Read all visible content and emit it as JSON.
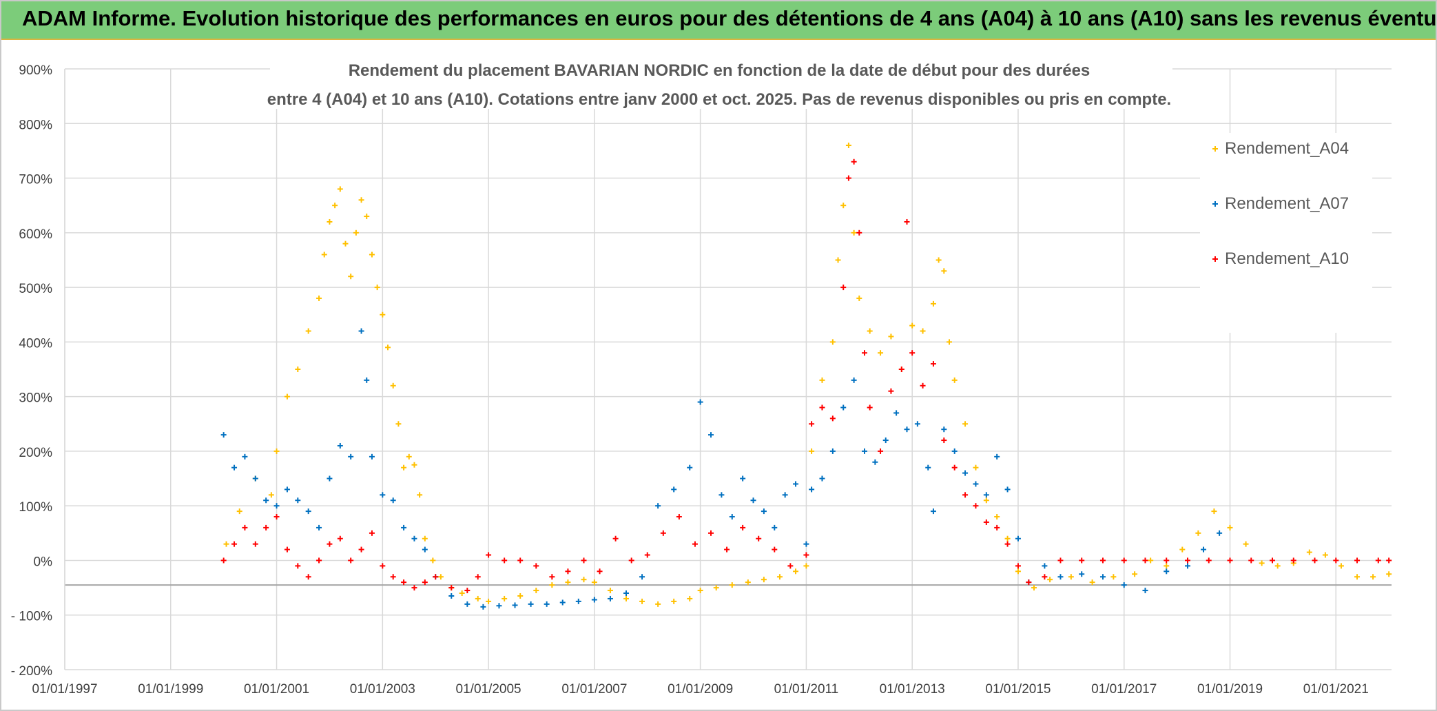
{
  "banner": {
    "title": "ADAM Informe. Evolution historique des performances en euros pour des détentions de 4 ans (A04) à 10 ans (A10) sans les revenus éventuels",
    "color": "#7ccc7a"
  },
  "chart_data": {
    "type": "scatter",
    "title_lines": [
      "Rendement du placement BAVARIAN NORDIC en fonction de la date de début pour des durées",
      "entre 4 (A04) et 10 ans (A10). Cotations entre janv 2000 et oct. 2025. Pas de revenus disponibles ou pris en compte."
    ],
    "x_ticks": [
      "01/01/1997",
      "01/01/1999",
      "01/01/2001",
      "01/01/2003",
      "01/01/2005",
      "01/01/2007",
      "01/01/2009",
      "01/01/2011",
      "01/01/2013",
      "01/01/2015",
      "01/01/2017",
      "01/01/2019",
      "01/01/2021"
    ],
    "x_tick_years": [
      1997,
      1999,
      2001,
      2003,
      2005,
      2007,
      2009,
      2011,
      2013,
      2015,
      2017,
      2019,
      2021
    ],
    "xlim": [
      1997,
      2022.05
    ],
    "ylim": [
      -200,
      900
    ],
    "y_ticks": [
      -200,
      -100,
      0,
      100,
      200,
      300,
      400,
      500,
      600,
      700,
      800,
      900
    ],
    "y_tick_labels": [
      "- 200%",
      "- 100%",
      "0%",
      "100%",
      "200%",
      "300%",
      "400%",
      "500%",
      "600%",
      "700%",
      "800%",
      "900%"
    ],
    "legend_position": "right",
    "series": [
      {
        "name": "Rendement_A04",
        "color": "#ffc000",
        "points": [
          [
            2000.05,
            30
          ],
          [
            2000.3,
            90
          ],
          [
            2000.6,
            150
          ],
          [
            2000.9,
            120
          ],
          [
            2001.0,
            200
          ],
          [
            2001.2,
            300
          ],
          [
            2001.4,
            350
          ],
          [
            2001.6,
            420
          ],
          [
            2001.8,
            480
          ],
          [
            2001.9,
            560
          ],
          [
            2002.0,
            620
          ],
          [
            2002.1,
            650
          ],
          [
            2002.2,
            680
          ],
          [
            2002.3,
            580
          ],
          [
            2002.4,
            520
          ],
          [
            2002.5,
            600
          ],
          [
            2002.6,
            660
          ],
          [
            2002.7,
            630
          ],
          [
            2002.8,
            560
          ],
          [
            2002.9,
            500
          ],
          [
            2003.0,
            450
          ],
          [
            2003.1,
            390
          ],
          [
            2003.2,
            320
          ],
          [
            2003.3,
            250
          ],
          [
            2003.4,
            170
          ],
          [
            2003.5,
            190
          ],
          [
            2003.6,
            175
          ],
          [
            2003.7,
            120
          ],
          [
            2003.8,
            40
          ],
          [
            2003.95,
            0
          ],
          [
            2004.1,
            -30
          ],
          [
            2004.3,
            -50
          ],
          [
            2004.5,
            -60
          ],
          [
            2004.8,
            -70
          ],
          [
            2005.0,
            -75
          ],
          [
            2005.3,
            -70
          ],
          [
            2005.6,
            -65
          ],
          [
            2005.9,
            -55
          ],
          [
            2006.2,
            -45
          ],
          [
            2006.5,
            -40
          ],
          [
            2006.8,
            -35
          ],
          [
            2007.0,
            -40
          ],
          [
            2007.3,
            -55
          ],
          [
            2007.6,
            -70
          ],
          [
            2007.9,
            -75
          ],
          [
            2008.2,
            -80
          ],
          [
            2008.5,
            -75
          ],
          [
            2008.8,
            -70
          ],
          [
            2009.0,
            -55
          ],
          [
            2009.3,
            -50
          ],
          [
            2009.6,
            -45
          ],
          [
            2009.9,
            -40
          ],
          [
            2010.2,
            -35
          ],
          [
            2010.5,
            -30
          ],
          [
            2010.8,
            -20
          ],
          [
            2011.0,
            -10
          ],
          [
            2011.1,
            200
          ],
          [
            2011.3,
            330
          ],
          [
            2011.5,
            400
          ],
          [
            2011.6,
            550
          ],
          [
            2011.7,
            650
          ],
          [
            2011.8,
            760
          ],
          [
            2011.9,
            600
          ],
          [
            2012.0,
            480
          ],
          [
            2012.2,
            420
          ],
          [
            2012.4,
            380
          ],
          [
            2012.6,
            410
          ],
          [
            2012.8,
            350
          ],
          [
            2013.0,
            430
          ],
          [
            2013.2,
            420
          ],
          [
            2013.4,
            470
          ],
          [
            2013.5,
            550
          ],
          [
            2013.6,
            530
          ],
          [
            2013.7,
            400
          ],
          [
            2013.8,
            330
          ],
          [
            2014.0,
            250
          ],
          [
            2014.2,
            170
          ],
          [
            2014.4,
            110
          ],
          [
            2014.6,
            80
          ],
          [
            2014.8,
            40
          ],
          [
            2015.0,
            -20
          ],
          [
            2015.3,
            -50
          ],
          [
            2015.6,
            -35
          ],
          [
            2016.0,
            -30
          ],
          [
            2016.4,
            -40
          ],
          [
            2016.8,
            -30
          ],
          [
            2017.2,
            -25
          ],
          [
            2017.5,
            0
          ],
          [
            2017.8,
            -10
          ],
          [
            2018.1,
            20
          ],
          [
            2018.4,
            50
          ],
          [
            2018.7,
            90
          ],
          [
            2019.0,
            60
          ],
          [
            2019.3,
            30
          ],
          [
            2019.6,
            -5
          ],
          [
            2019.9,
            -10
          ],
          [
            2020.2,
            -5
          ],
          [
            2020.5,
            15
          ],
          [
            2020.8,
            10
          ],
          [
            2021.1,
            -10
          ],
          [
            2021.4,
            -30
          ],
          [
            2021.7,
            -30
          ],
          [
            2022.0,
            -25
          ]
        ]
      },
      {
        "name": "Rendement_A07",
        "color": "#0070c0",
        "points": [
          [
            2000.0,
            230
          ],
          [
            2000.2,
            170
          ],
          [
            2000.4,
            190
          ],
          [
            2000.6,
            150
          ],
          [
            2000.8,
            110
          ],
          [
            2001.0,
            100
          ],
          [
            2001.2,
            130
          ],
          [
            2001.4,
            110
          ],
          [
            2001.6,
            90
          ],
          [
            2001.8,
            60
          ],
          [
            2002.0,
            150
          ],
          [
            2002.2,
            210
          ],
          [
            2002.4,
            190
          ],
          [
            2002.6,
            420
          ],
          [
            2002.7,
            330
          ],
          [
            2002.8,
            190
          ],
          [
            2003.0,
            120
          ],
          [
            2003.2,
            110
          ],
          [
            2003.4,
            60
          ],
          [
            2003.6,
            40
          ],
          [
            2003.8,
            20
          ],
          [
            2004.0,
            -30
          ],
          [
            2004.3,
            -65
          ],
          [
            2004.6,
            -80
          ],
          [
            2004.9,
            -85
          ],
          [
            2005.2,
            -83
          ],
          [
            2005.5,
            -82
          ],
          [
            2005.8,
            -80
          ],
          [
            2006.1,
            -80
          ],
          [
            2006.4,
            -77
          ],
          [
            2006.7,
            -75
          ],
          [
            2007.0,
            -72
          ],
          [
            2007.3,
            -70
          ],
          [
            2007.6,
            -60
          ],
          [
            2007.9,
            -30
          ],
          [
            2008.2,
            100
          ],
          [
            2008.5,
            130
          ],
          [
            2008.8,
            170
          ],
          [
            2009.0,
            290
          ],
          [
            2009.2,
            230
          ],
          [
            2009.4,
            120
          ],
          [
            2009.6,
            80
          ],
          [
            2009.8,
            150
          ],
          [
            2010.0,
            110
          ],
          [
            2010.2,
            90
          ],
          [
            2010.4,
            60
          ],
          [
            2010.6,
            120
          ],
          [
            2010.8,
            140
          ],
          [
            2011.0,
            30
          ],
          [
            2011.1,
            130
          ],
          [
            2011.3,
            150
          ],
          [
            2011.5,
            200
          ],
          [
            2011.7,
            280
          ],
          [
            2011.9,
            330
          ],
          [
            2012.1,
            200
          ],
          [
            2012.3,
            180
          ],
          [
            2012.5,
            220
          ],
          [
            2012.7,
            270
          ],
          [
            2012.9,
            240
          ],
          [
            2013.1,
            250
          ],
          [
            2013.3,
            170
          ],
          [
            2013.4,
            90
          ],
          [
            2013.6,
            240
          ],
          [
            2013.8,
            200
          ],
          [
            2014.0,
            160
          ],
          [
            2014.2,
            140
          ],
          [
            2014.4,
            120
          ],
          [
            2014.6,
            190
          ],
          [
            2014.8,
            130
          ],
          [
            2015.0,
            40
          ],
          [
            2015.2,
            -40
          ],
          [
            2015.5,
            -10
          ],
          [
            2015.8,
            -30
          ],
          [
            2016.2,
            -25
          ],
          [
            2016.6,
            -30
          ],
          [
            2017.0,
            -45
          ],
          [
            2017.4,
            -55
          ],
          [
            2017.8,
            -20
          ],
          [
            2018.2,
            -10
          ],
          [
            2018.5,
            20
          ],
          [
            2018.8,
            50
          ]
        ]
      },
      {
        "name": "Rendement_A10",
        "color": "#ff0000",
        "points": [
          [
            2000.0,
            0
          ],
          [
            2000.2,
            30
          ],
          [
            2000.4,
            60
          ],
          [
            2000.6,
            30
          ],
          [
            2000.8,
            60
          ],
          [
            2001.0,
            80
          ],
          [
            2001.2,
            20
          ],
          [
            2001.4,
            -10
          ],
          [
            2001.6,
            -30
          ],
          [
            2001.8,
            0
          ],
          [
            2002.0,
            30
          ],
          [
            2002.2,
            40
          ],
          [
            2002.4,
            0
          ],
          [
            2002.6,
            20
          ],
          [
            2002.8,
            50
          ],
          [
            2003.0,
            -10
          ],
          [
            2003.2,
            -30
          ],
          [
            2003.4,
            -40
          ],
          [
            2003.6,
            -50
          ],
          [
            2003.8,
            -40
          ],
          [
            2004.0,
            -30
          ],
          [
            2004.3,
            -50
          ],
          [
            2004.6,
            -55
          ],
          [
            2004.8,
            -30
          ],
          [
            2005.0,
            10
          ],
          [
            2005.3,
            0
          ],
          [
            2005.6,
            0
          ],
          [
            2005.9,
            -10
          ],
          [
            2006.2,
            -30
          ],
          [
            2006.5,
            -20
          ],
          [
            2006.8,
            0
          ],
          [
            2007.1,
            -20
          ],
          [
            2007.4,
            40
          ],
          [
            2007.7,
            0
          ],
          [
            2008.0,
            10
          ],
          [
            2008.3,
            50
          ],
          [
            2008.6,
            80
          ],
          [
            2008.9,
            30
          ],
          [
            2009.2,
            50
          ],
          [
            2009.5,
            20
          ],
          [
            2009.8,
            60
          ],
          [
            2010.1,
            40
          ],
          [
            2010.4,
            20
          ],
          [
            2010.7,
            -10
          ],
          [
            2011.0,
            10
          ],
          [
            2011.1,
            250
          ],
          [
            2011.3,
            280
          ],
          [
            2011.5,
            260
          ],
          [
            2011.7,
            500
          ],
          [
            2011.8,
            700
          ],
          [
            2011.9,
            730
          ],
          [
            2012.0,
            600
          ],
          [
            2012.1,
            380
          ],
          [
            2012.2,
            280
          ],
          [
            2012.4,
            200
          ],
          [
            2012.6,
            310
          ],
          [
            2012.8,
            350
          ],
          [
            2012.9,
            620
          ],
          [
            2013.0,
            380
          ],
          [
            2013.2,
            320
          ],
          [
            2013.4,
            360
          ],
          [
            2013.6,
            220
          ],
          [
            2013.8,
            170
          ],
          [
            2014.0,
            120
          ],
          [
            2014.2,
            100
          ],
          [
            2014.4,
            70
          ],
          [
            2014.6,
            60
          ],
          [
            2014.8,
            30
          ],
          [
            2015.0,
            -10
          ],
          [
            2015.2,
            -40
          ],
          [
            2015.5,
            -30
          ],
          [
            2015.8,
            0
          ],
          [
            2016.2,
            0
          ],
          [
            2016.6,
            0
          ],
          [
            2017.0,
            0
          ],
          [
            2017.4,
            0
          ],
          [
            2017.8,
            0
          ],
          [
            2018.2,
            0
          ],
          [
            2018.6,
            0
          ],
          [
            2019.0,
            0
          ],
          [
            2019.4,
            0
          ],
          [
            2019.8,
            0
          ],
          [
            2020.2,
            0
          ],
          [
            2020.6,
            0
          ],
          [
            2021.0,
            0
          ],
          [
            2021.4,
            0
          ],
          [
            2021.8,
            0
          ],
          [
            2022.0,
            0
          ]
        ]
      }
    ]
  }
}
